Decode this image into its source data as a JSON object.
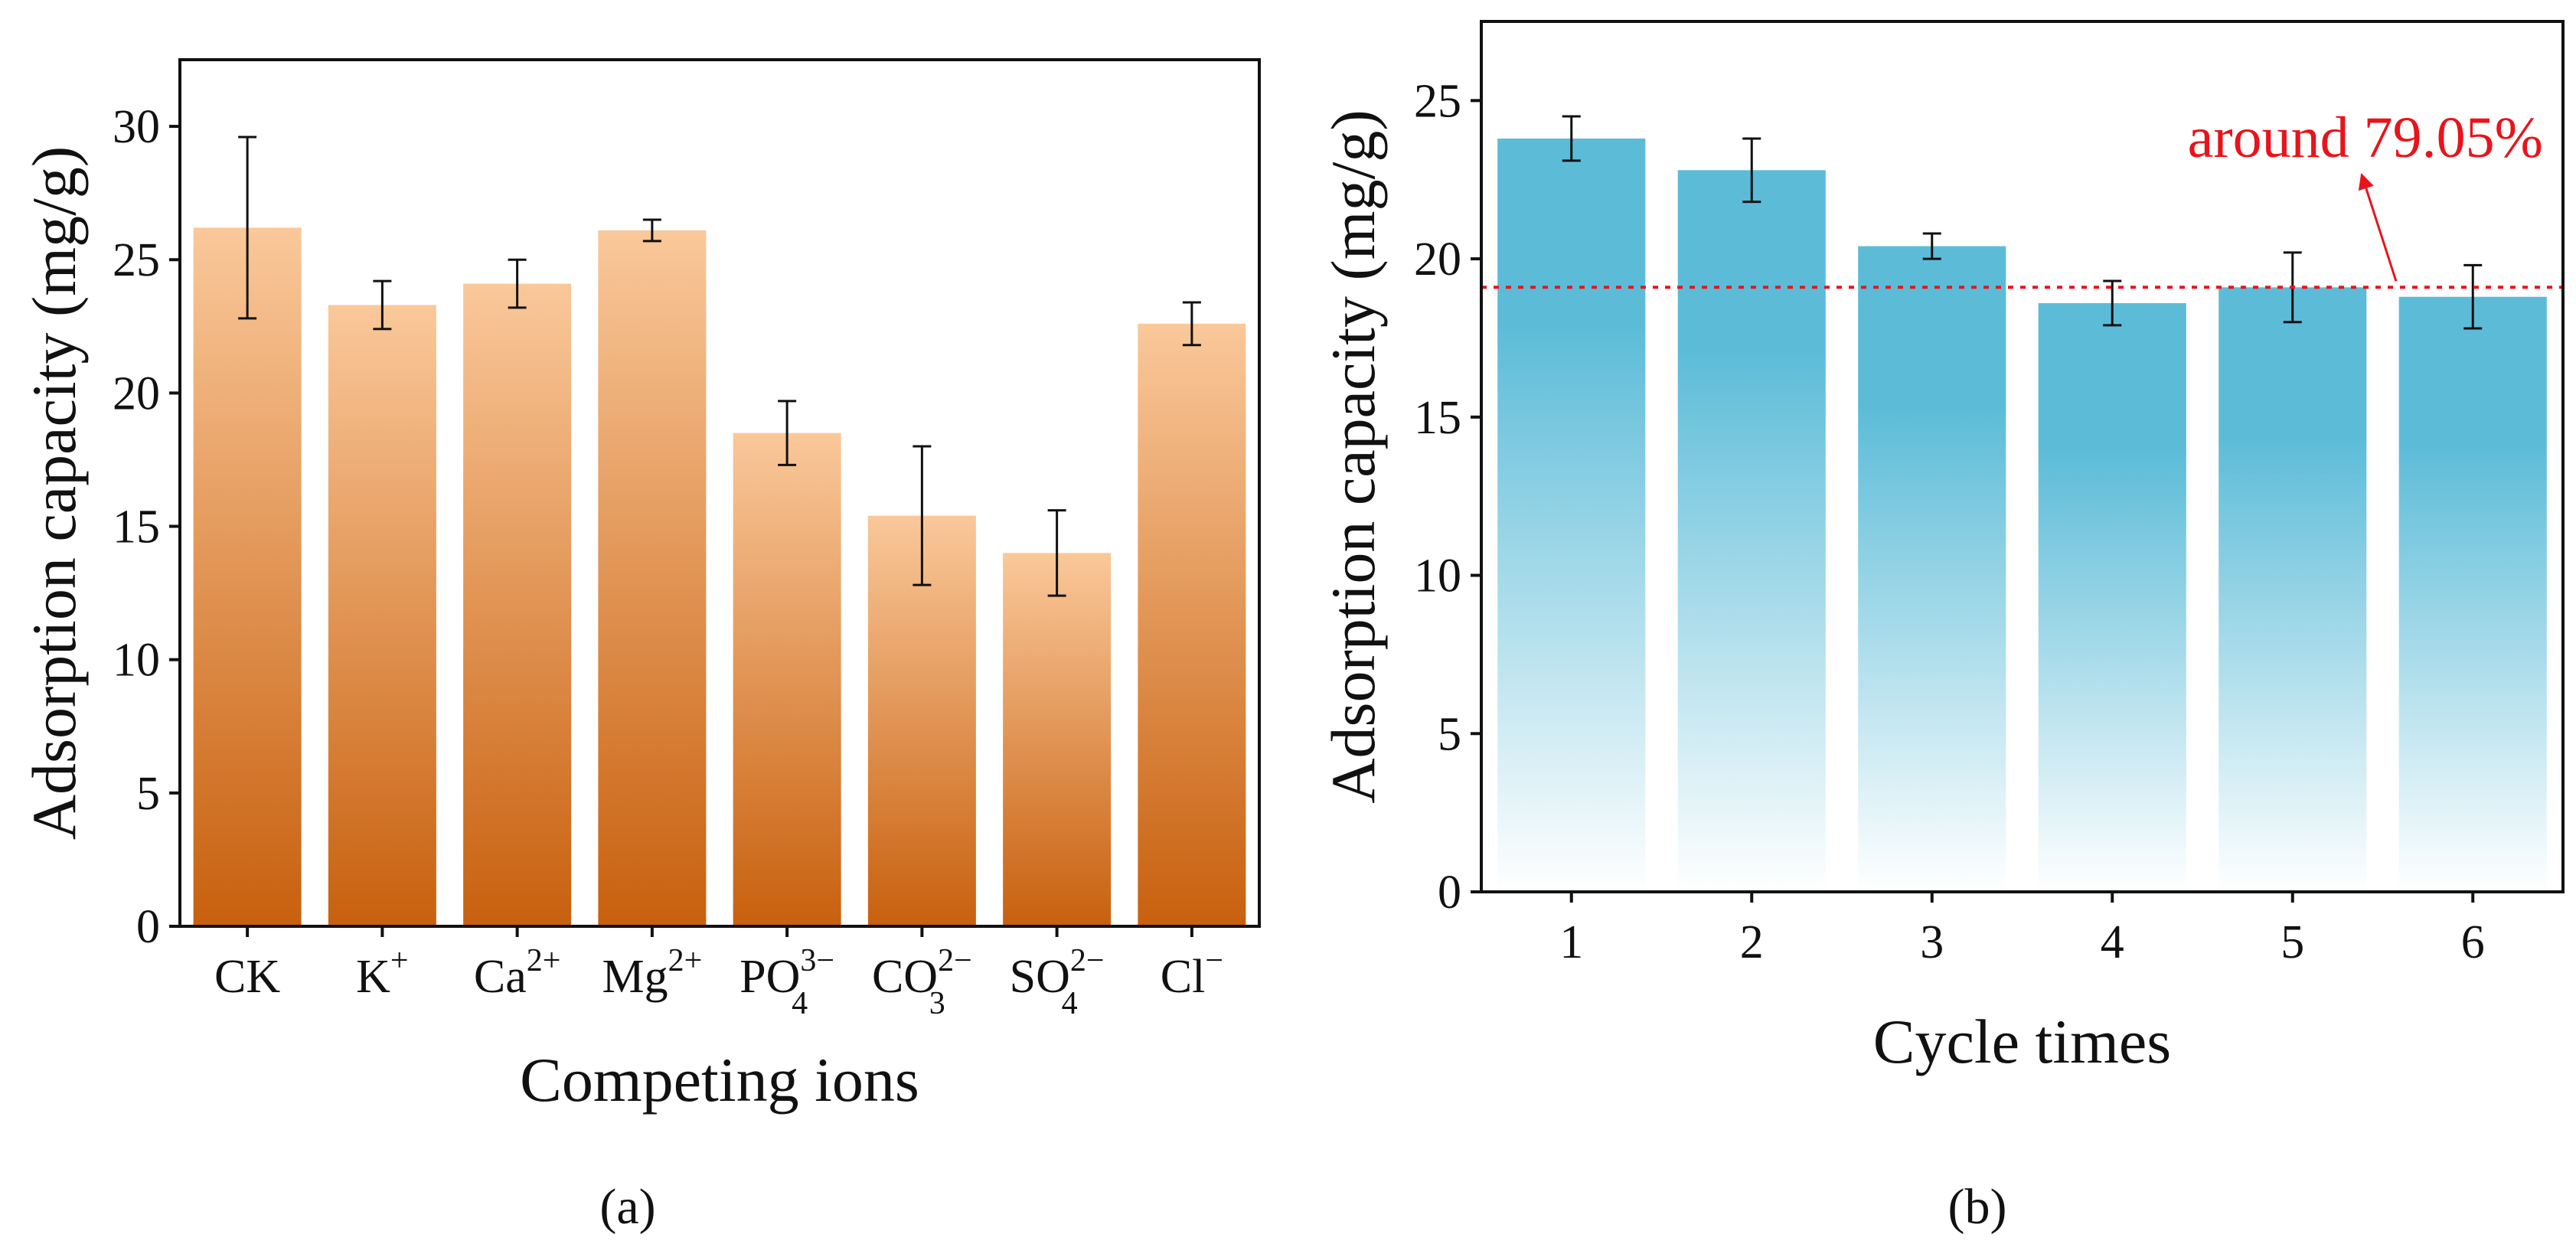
{
  "chart_data": [
    {
      "type": "bar",
      "panel_label": "(a)",
      "title": "",
      "xlabel": "Competing ions",
      "ylabel": "Adsorption capacity (mg/g)",
      "ylim": [
        0,
        32.5
      ],
      "yticks": [
        0,
        5,
        10,
        15,
        20,
        25,
        30
      ],
      "categories": [
        {
          "base": "CK",
          "sup": "",
          "sub": ""
        },
        {
          "base": "K",
          "sup": "+",
          "sub": ""
        },
        {
          "base": "Ca",
          "sup": "2+",
          "sub": ""
        },
        {
          "base": "Mg",
          "sup": "2+",
          "sub": ""
        },
        {
          "base": "PO",
          "sup": "3−",
          "sub": "4"
        },
        {
          "base": "CO",
          "sup": "2−",
          "sub": "3"
        },
        {
          "base": "SO",
          "sup": "2−",
          "sub": "4"
        },
        {
          "base": "Cl",
          "sup": "−",
          "sub": ""
        }
      ],
      "values": [
        26.2,
        23.3,
        24.1,
        26.1,
        18.5,
        15.4,
        14.0,
        22.6
      ],
      "errors": [
        3.4,
        0.9,
        0.9,
        0.4,
        1.2,
        2.6,
        1.6,
        0.8
      ],
      "colors": {
        "top": "#fac89a",
        "bottom": "#c8600e",
        "error": "#111111",
        "axis": "#111111"
      },
      "grid": false,
      "legend": "none"
    },
    {
      "type": "bar",
      "panel_label": "(b)",
      "title": "",
      "xlabel": "Cycle times",
      "ylabel": "Adsorption capacity (mg/g)",
      "ylim": [
        0,
        27.5
      ],
      "yticks": [
        0,
        5,
        10,
        15,
        20,
        25
      ],
      "categories": [
        "1",
        "2",
        "3",
        "4",
        "5",
        "6"
      ],
      "values": [
        23.8,
        22.8,
        20.4,
        18.6,
        19.1,
        18.8
      ],
      "errors": [
        0.7,
        1.0,
        0.4,
        0.7,
        1.1,
        1.0
      ],
      "reference_line": {
        "y": 19.1,
        "color": "#e8141c",
        "style": "dotted"
      },
      "annotation": {
        "text": "around 79.05%",
        "color": "#e8141c"
      },
      "colors": {
        "top": "#5cbcd8",
        "bottom": "#ffffff",
        "error": "#111111",
        "axis": "#111111"
      },
      "grid": false,
      "legend": "none"
    }
  ]
}
